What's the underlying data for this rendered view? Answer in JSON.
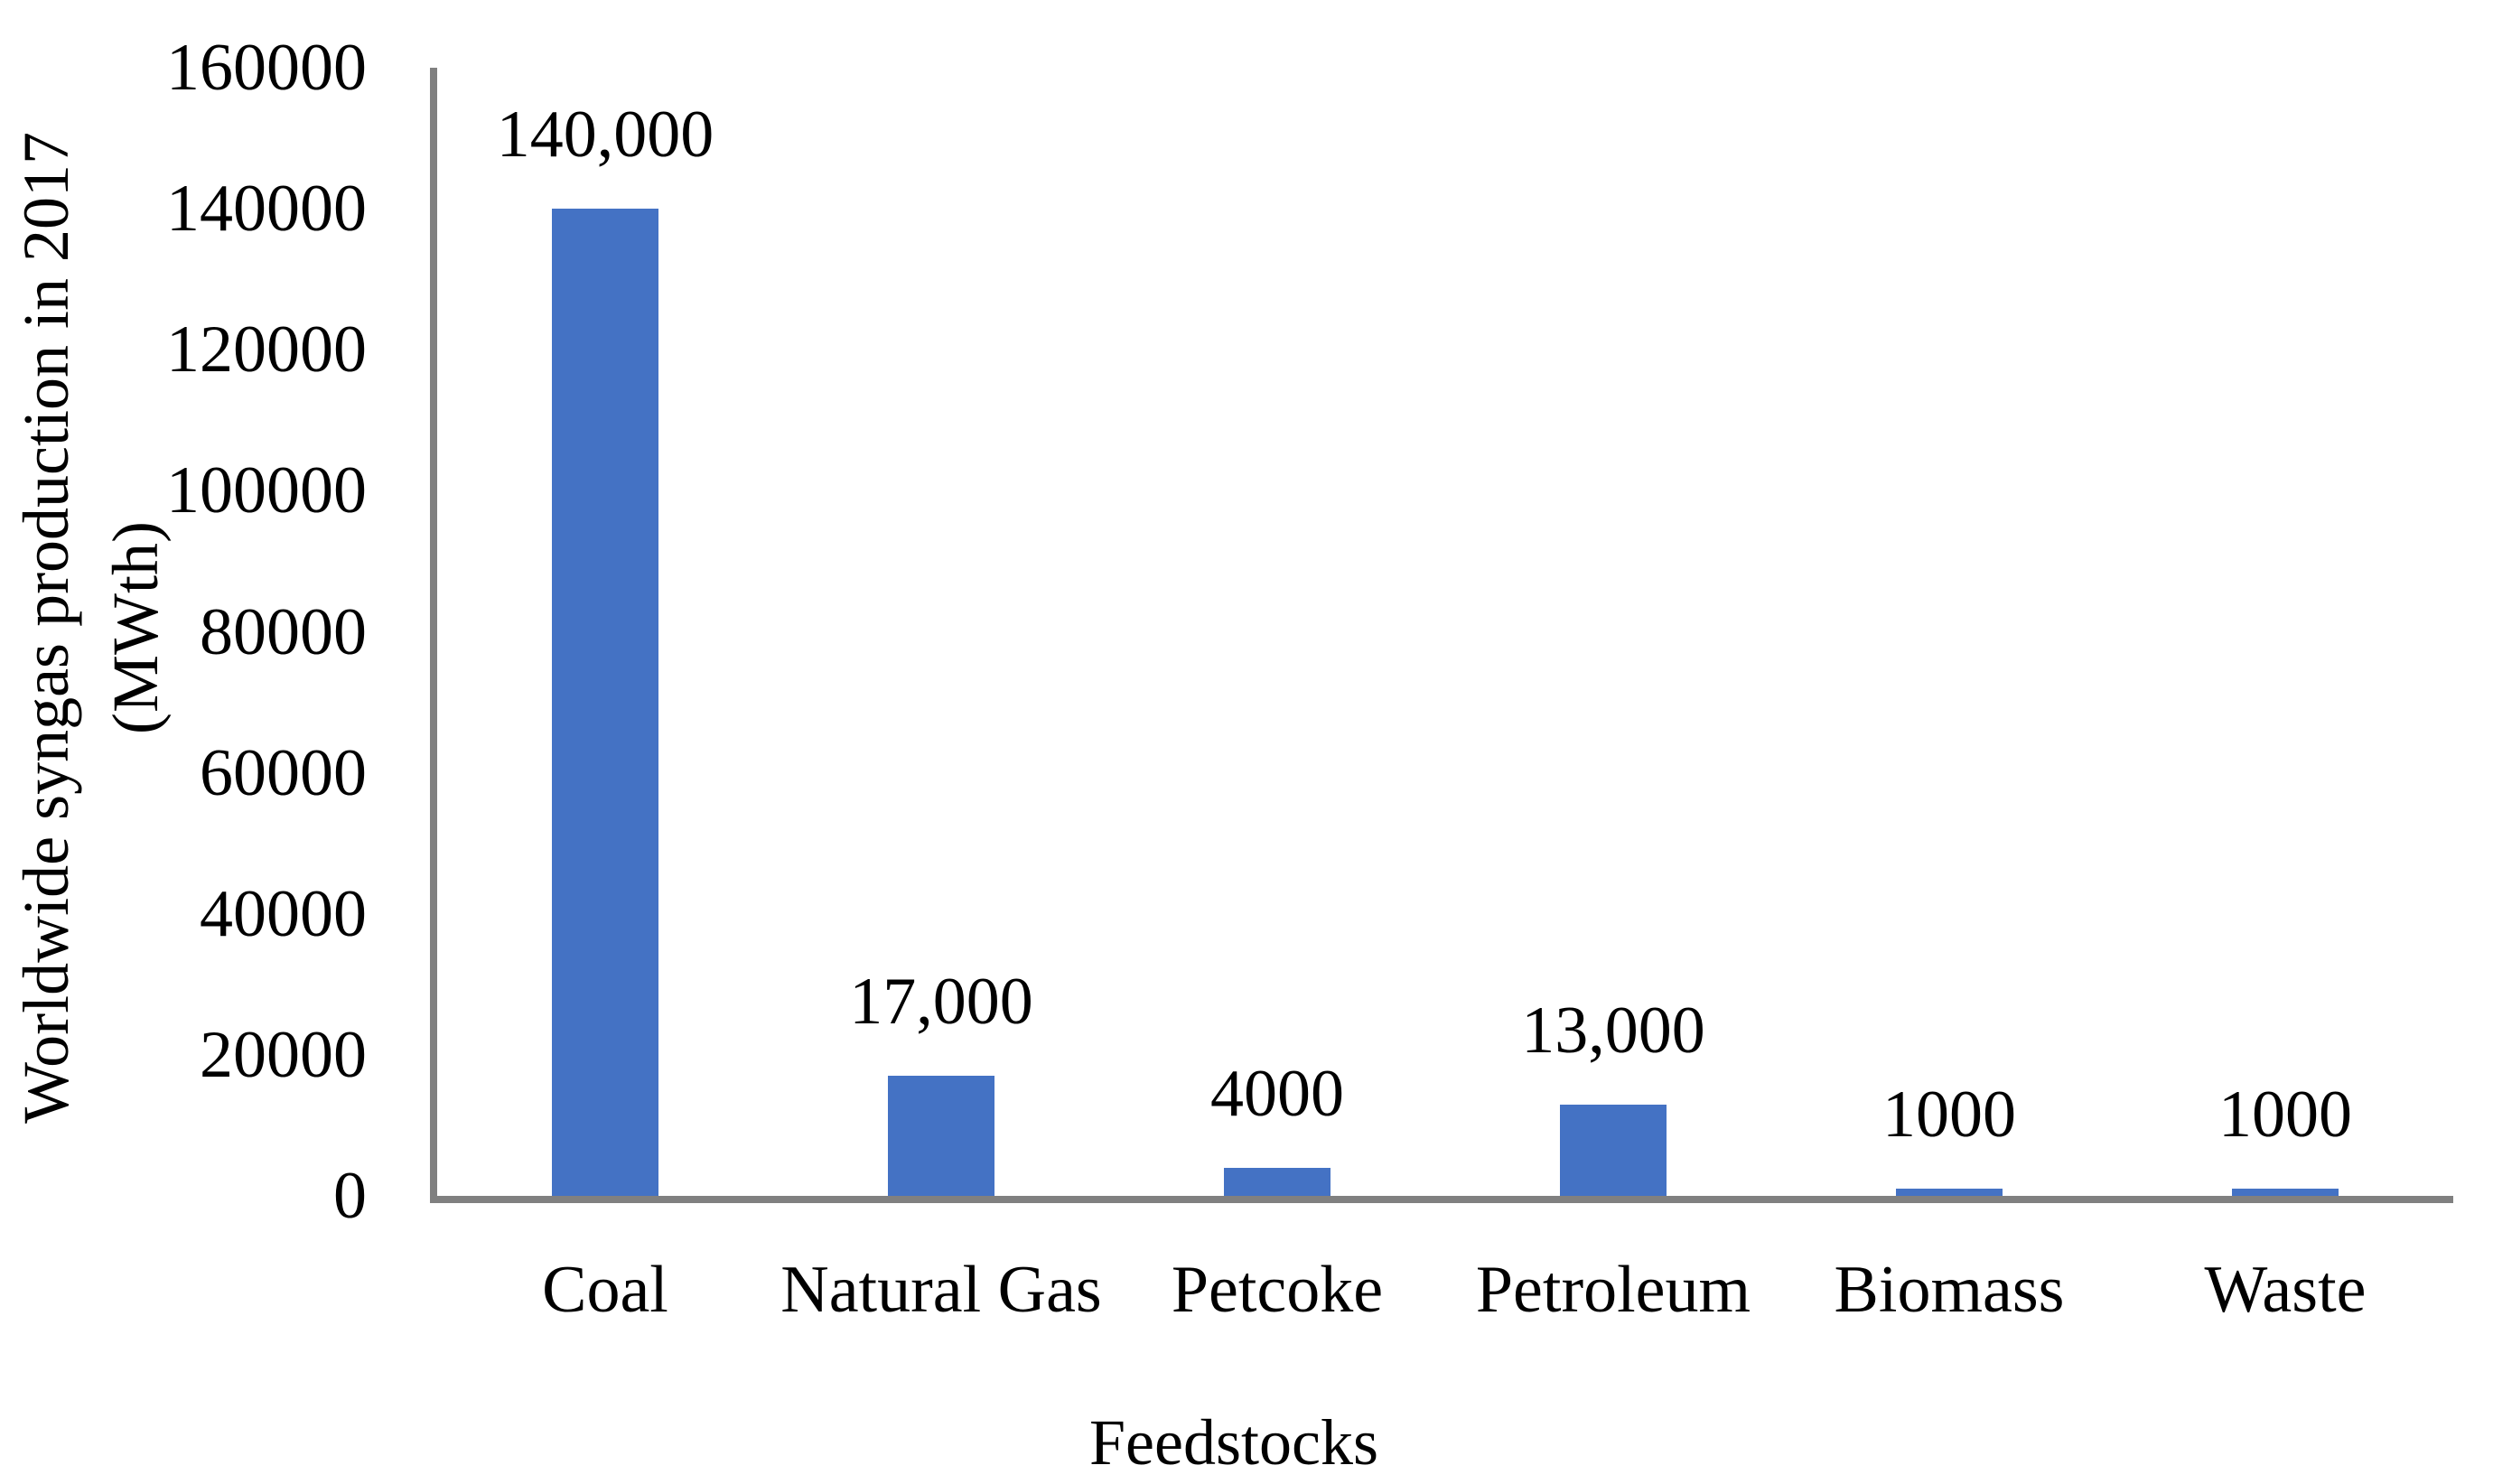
{
  "chart_data": {
    "type": "bar",
    "title": "",
    "categories": [
      "Coal",
      "Natural Gas",
      "Petcoke",
      "Petroleum",
      "Biomass",
      "Waste"
    ],
    "values": [
      140000,
      17000,
      4000,
      13000,
      1000,
      1000
    ],
    "bar_value_labels": [
      "140,000",
      "17,000",
      "4000",
      "13,000",
      "1000",
      "1000"
    ],
    "xlabel": "Feedstocks",
    "ylabel": "Worldwide syngas production in 2017 (MWth)",
    "ylabel_lines": [
      "Worldwide syngas production in 2017",
      "(MWth)"
    ],
    "ylim": [
      0,
      160000
    ],
    "ytick_step": 20000,
    "ytick_labels": [
      "160000",
      "140000",
      "120000",
      "100000",
      "80000",
      "60000",
      "40000",
      "20000",
      "0"
    ],
    "grid": false,
    "legend": "none",
    "bar_color": "#4472C4",
    "axis_line_color": "#808080",
    "text_color": "#000000",
    "background_color": "#FFFFFF"
  }
}
